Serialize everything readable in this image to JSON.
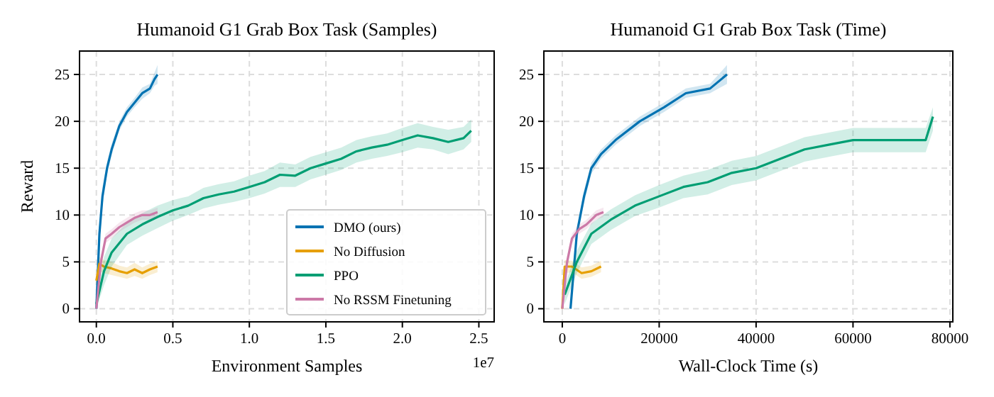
{
  "chart_data": [
    {
      "type": "line",
      "title": "Humanoid G1 Grab Box Task (Samples)",
      "xlabel": "Environment Samples",
      "ylabel": "Reward",
      "annotations": [
        "1e7"
      ],
      "xlim": [
        -0.11,
        2.6
      ],
      "ylim": [
        -1.4,
        27.5
      ],
      "xticks": [
        {
          "value": 0,
          "label": "0.0"
        },
        0.5,
        {
          "value": 1,
          "label": "1.0"
        },
        1.5,
        {
          "value": 2,
          "label": "2.0"
        },
        2.5
      ],
      "yticks": [
        0,
        5,
        10,
        15,
        20,
        25
      ],
      "grid": true,
      "legend": "bottom right",
      "line_style": "solid",
      "marker": "none",
      "series": [
        {
          "name": "DMO (ours)",
          "color": "#0072b2",
          "x": [
            0,
            0.02,
            0.04,
            0.07,
            0.1,
            0.15,
            0.2,
            0.25,
            0.3,
            0.35,
            0.38,
            0.4
          ],
          "values": [
            0,
            8,
            12,
            15,
            17,
            19.5,
            21,
            22,
            23,
            23.5,
            24.5,
            25
          ],
          "lower": [
            0,
            7,
            11,
            14.3,
            16.4,
            19,
            20.5,
            21.5,
            22.4,
            23,
            23.8,
            24
          ],
          "upper": [
            0,
            9,
            13,
            15.7,
            17.6,
            20,
            21.5,
            22.5,
            23.6,
            24,
            25.2,
            26
          ]
        },
        {
          "name": "No Diffusion",
          "color": "#e69f00",
          "x": [
            0,
            0.02,
            0.05,
            0.1,
            0.15,
            0.2,
            0.25,
            0.3,
            0.35,
            0.4
          ],
          "values": [
            3,
            4.8,
            4.5,
            4.3,
            4,
            3.8,
            4.2,
            3.8,
            4.2,
            4.5
          ],
          "lower": [
            2.5,
            4,
            3.8,
            3.6,
            3.4,
            3.2,
            3.5,
            3.2,
            3.6,
            3.9
          ],
          "upper": [
            3.5,
            5.5,
            5.2,
            5,
            4.6,
            4.4,
            4.9,
            4.4,
            4.8,
            5.1
          ]
        },
        {
          "name": "PPO",
          "color": "#009e73",
          "x": [
            0,
            0.05,
            0.1,
            0.2,
            0.3,
            0.4,
            0.5,
            0.6,
            0.7,
            0.8,
            0.9,
            1,
            1.1,
            1.2,
            1.3,
            1.4,
            1.5,
            1.6,
            1.7,
            1.8,
            1.9,
            2,
            2.1,
            2.2,
            2.3,
            2.4,
            2.45
          ],
          "values": [
            0.5,
            4,
            6,
            8,
            9,
            9.8,
            10.5,
            11,
            11.8,
            12.2,
            12.5,
            13,
            13.5,
            14.3,
            14.2,
            15,
            15.5,
            16,
            16.8,
            17.2,
            17.5,
            18,
            18.5,
            18.2,
            17.8,
            18.2,
            19
          ],
          "lower": [
            0,
            2.5,
            4.5,
            6.8,
            7.8,
            8.6,
            9.4,
            10,
            10.7,
            11.1,
            11.4,
            11.8,
            12.3,
            13,
            13,
            13.8,
            14.3,
            14.8,
            15.6,
            16,
            16.3,
            16.7,
            17.2,
            17,
            16.5,
            17,
            17.8
          ],
          "upper": [
            1,
            5.5,
            7.5,
            9.2,
            10.2,
            11,
            11.6,
            12,
            12.9,
            13.3,
            13.6,
            14.2,
            14.7,
            15.6,
            15.4,
            16.2,
            16.7,
            17.2,
            18,
            18.4,
            18.7,
            19.3,
            19.8,
            19.4,
            19.1,
            19.4,
            20.2
          ]
        },
        {
          "name": "No RSSM Finetuning",
          "color": "#cc79a7",
          "x": [
            0,
            0.03,
            0.06,
            0.1,
            0.15,
            0.2,
            0.25,
            0.3,
            0.35,
            0.4
          ],
          "values": [
            0,
            5,
            7.5,
            8,
            8.7,
            9.2,
            9.7,
            10,
            10,
            10.3
          ],
          "lower": [
            0,
            4.3,
            7,
            7.5,
            8.2,
            8.7,
            9.2,
            9.5,
            9.5,
            9.8
          ],
          "upper": [
            0,
            5.7,
            8,
            8.5,
            9.2,
            9.7,
            10.2,
            10.5,
            10.5,
            10.8
          ]
        }
      ]
    },
    {
      "type": "line",
      "title": "Humanoid G1 Grab Box Task (Time)",
      "xlabel": "Wall-Clock Time (s)",
      "xlim": [
        -3800,
        80600
      ],
      "ylim": [
        -1.4,
        27.5
      ],
      "xticks": [
        0,
        20000,
        40000,
        60000,
        80000
      ],
      "yticks": [
        0,
        5,
        10,
        15,
        20,
        25
      ],
      "grid": true,
      "legend": false,
      "line_style": "solid",
      "marker": "none",
      "series": [
        {
          "color": "#0072b2",
          "x": [
            1700,
            3000,
            4500,
            6000,
            8000,
            11000,
            16000,
            21000,
            25500,
            30500,
            34000
          ],
          "values": [
            0,
            8,
            12,
            15,
            16.5,
            18,
            20,
            21.5,
            23,
            23.5,
            25
          ],
          "lower": [
            0,
            7.3,
            11.3,
            14.4,
            16,
            17.5,
            19.5,
            21,
            22.5,
            23,
            24
          ],
          "upper": [
            0,
            8.7,
            12.7,
            15.6,
            17,
            18.5,
            20.5,
            22,
            23.5,
            24,
            26
          ]
        },
        {
          "color": "#e69f00",
          "x": [
            0,
            500,
            2000,
            4000,
            6000,
            8000
          ],
          "values": [
            0,
            4.5,
            4.5,
            3.8,
            4,
            4.5
          ],
          "lower": [
            0,
            3.8,
            3.9,
            3.2,
            3.4,
            3.9
          ],
          "upper": [
            0,
            5.2,
            5.1,
            4.4,
            4.6,
            5.1
          ]
        },
        {
          "color": "#009e73",
          "x": [
            500,
            3000,
            6000,
            10000,
            15000,
            20000,
            25000,
            30000,
            35000,
            40000,
            45000,
            50000,
            55000,
            60000,
            65000,
            70000,
            75000,
            76500
          ],
          "values": [
            1.5,
            5,
            8,
            9.5,
            11,
            12,
            13,
            13.5,
            14.5,
            15,
            16,
            17,
            17.5,
            18,
            18,
            18,
            18,
            20.5
          ],
          "lower": [
            0.5,
            3.8,
            6.9,
            8.4,
            9.9,
            10.8,
            11.8,
            12.2,
            13.2,
            13.7,
            14.7,
            15.7,
            16.2,
            16.7,
            16.7,
            16.7,
            16.7,
            19
          ],
          "upper": [
            2.5,
            6.2,
            9.1,
            10.6,
            12.1,
            13.2,
            14.2,
            14.8,
            15.8,
            16.3,
            17.3,
            18.3,
            18.8,
            19.3,
            19.3,
            19.3,
            19.3,
            21.5
          ]
        },
        {
          "color": "#cc79a7",
          "x": [
            0,
            1000,
            2000,
            3500,
            5000,
            7000,
            8500
          ],
          "values": [
            0,
            5,
            7.5,
            8.5,
            9,
            10,
            10.3
          ],
          "lower": [
            0,
            4.4,
            7,
            8,
            8.5,
            9.5,
            9.8
          ],
          "upper": [
            0,
            5.6,
            8,
            9,
            9.5,
            10.5,
            10.8
          ]
        }
      ]
    }
  ]
}
